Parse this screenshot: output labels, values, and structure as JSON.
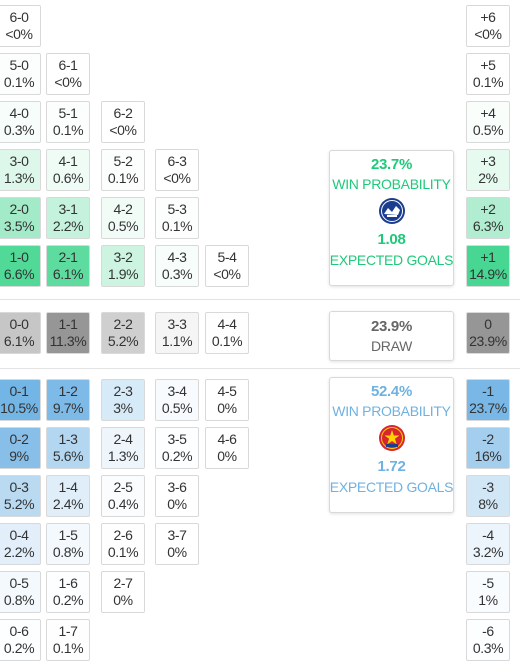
{
  "colors": {
    "home_accent": "#1fc97a",
    "draw_text": "#666666",
    "away_accent": "#6fb2e0",
    "border": "#d9d9d9"
  },
  "home_panel": {
    "win_pct": "23.7%",
    "win_label": "WIN PROBABILITY",
    "logo_icon": "team-crest-icon",
    "xg": "1.08",
    "xg_label": "EXPECTED GOALS"
  },
  "draw_panel": {
    "pct": "23.9%",
    "label": "DRAW"
  },
  "away_panel": {
    "win_pct": "52.4%",
    "win_label": "WIN PROBABILITY",
    "logo_icon": "team-crest-icon",
    "xg": "1.72",
    "xg_label": "EXPECTED GOALS"
  },
  "home_rows": [
    [
      {
        "s": "6-0",
        "p": "<0%"
      }
    ],
    [
      {
        "s": "5-0",
        "p": "0.1%"
      },
      {
        "s": "6-1",
        "p": "<0%"
      }
    ],
    [
      {
        "s": "4-0",
        "p": "0.3%"
      },
      {
        "s": "5-1",
        "p": "0.1%"
      },
      {
        "s": "6-2",
        "p": "<0%"
      }
    ],
    [
      {
        "s": "3-0",
        "p": "1.3%"
      },
      {
        "s": "4-1",
        "p": "0.6%"
      },
      {
        "s": "5-2",
        "p": "0.1%"
      },
      {
        "s": "6-3",
        "p": "<0%"
      }
    ],
    [
      {
        "s": "2-0",
        "p": "3.5%"
      },
      {
        "s": "3-1",
        "p": "2.2%"
      },
      {
        "s": "4-2",
        "p": "0.5%"
      },
      {
        "s": "5-3",
        "p": "0.1%"
      }
    ],
    [
      {
        "s": "1-0",
        "p": "6.6%"
      },
      {
        "s": "2-1",
        "p": "6.1%"
      },
      {
        "s": "3-2",
        "p": "1.9%"
      },
      {
        "s": "4-3",
        "p": "0.3%"
      },
      {
        "s": "5-4",
        "p": "<0%"
      }
    ]
  ],
  "draw_row": [
    {
      "s": "0-0",
      "p": "6.1%"
    },
    {
      "s": "1-1",
      "p": "11.3%"
    },
    {
      "s": "2-2",
      "p": "5.2%"
    },
    {
      "s": "3-3",
      "p": "1.1%"
    },
    {
      "s": "4-4",
      "p": "0.1%"
    }
  ],
  "away_rows": [
    [
      {
        "s": "0-1",
        "p": "10.5%"
      },
      {
        "s": "1-2",
        "p": "9.7%"
      },
      {
        "s": "2-3",
        "p": "3%"
      },
      {
        "s": "3-4",
        "p": "0.5%"
      },
      {
        "s": "4-5",
        "p": "0%"
      }
    ],
    [
      {
        "s": "0-2",
        "p": "9%"
      },
      {
        "s": "1-3",
        "p": "5.6%"
      },
      {
        "s": "2-4",
        "p": "1.3%"
      },
      {
        "s": "3-5",
        "p": "0.2%"
      },
      {
        "s": "4-6",
        "p": "0%"
      }
    ],
    [
      {
        "s": "0-3",
        "p": "5.2%"
      },
      {
        "s": "1-4",
        "p": "2.4%"
      },
      {
        "s": "2-5",
        "p": "0.4%"
      },
      {
        "s": "3-6",
        "p": "0%"
      }
    ],
    [
      {
        "s": "0-4",
        "p": "2.2%"
      },
      {
        "s": "1-5",
        "p": "0.8%"
      },
      {
        "s": "2-6",
        "p": "0.1%"
      },
      {
        "s": "3-7",
        "p": "0%"
      }
    ],
    [
      {
        "s": "0-5",
        "p": "0.8%"
      },
      {
        "s": "1-6",
        "p": "0.2%"
      },
      {
        "s": "2-7",
        "p": "0%"
      }
    ],
    [
      {
        "s": "0-6",
        "p": "0.2%"
      },
      {
        "s": "1-7",
        "p": "0.1%"
      }
    ]
  ],
  "margin_home": [
    {
      "s": "+6",
      "p": "<0%"
    },
    {
      "s": "+5",
      "p": "0.1%"
    },
    {
      "s": "+4",
      "p": "0.5%"
    },
    {
      "s": "+3",
      "p": "2%"
    },
    {
      "s": "+2",
      "p": "6.3%"
    },
    {
      "s": "+1",
      "p": "14.9%"
    }
  ],
  "margin_draw": {
    "s": "0",
    "p": "23.9%"
  },
  "margin_away": [
    {
      "s": "-1",
      "p": "23.7%"
    },
    {
      "s": "-2",
      "p": "16%"
    },
    {
      "s": "-3",
      "p": "8%"
    },
    {
      "s": "-4",
      "p": "3.2%"
    },
    {
      "s": "-5",
      "p": "1%"
    },
    {
      "s": "-6",
      "p": "0.3%"
    }
  ]
}
